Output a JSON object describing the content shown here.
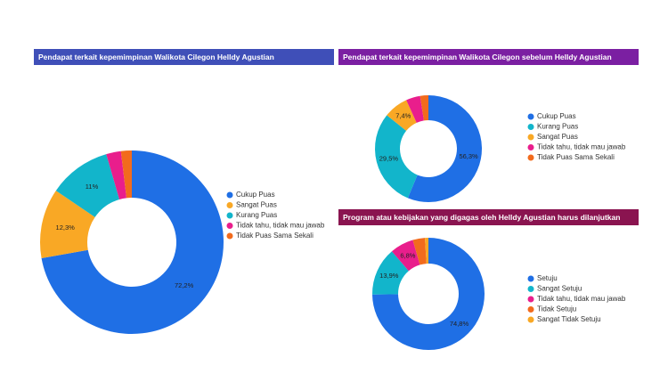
{
  "chart_data": [
    {
      "type": "pie",
      "title": "Pendapat terkait kepemimpinan Walikota Cilegon Helldy Agustian",
      "categories": [
        "Cukup Puas",
        "Sangat Puas",
        "Kurang Puas",
        "Tidak tahu, tidak mau jawab",
        "Tidak Puas Sama Sekali"
      ],
      "values": [
        72.2,
        12.3,
        11,
        2.6,
        1.9
      ],
      "value_labels": [
        "72,2%",
        "12,3%",
        "11%",
        null,
        null
      ],
      "colors": [
        "#1f6fe5",
        "#f9a825",
        "#12b5cb",
        "#e91e8c",
        "#f26b1d"
      ]
    },
    {
      "type": "pie",
      "title": "Pendapat terkait kepemimpinan Walikota Cilegon sebelum Helldy Agustian",
      "categories": [
        "Cukup Puas",
        "Kurang Puas",
        "Sangat Puas",
        "Tidak tahu, tidak mau jawab",
        "Tidak Puas Sama Sekali"
      ],
      "values": [
        56.3,
        29.5,
        7.4,
        4.3,
        2.5
      ],
      "value_labels": [
        "56,3%",
        "29,5%",
        "7,4%",
        null,
        null
      ],
      "colors": [
        "#1f6fe5",
        "#12b5cb",
        "#f9a825",
        "#e91e8c",
        "#f26b1d"
      ]
    },
    {
      "type": "pie",
      "title": "Program atau kebijakan yang digagas oleh Helldy Agustian harus dilanjutkan",
      "categories": [
        "Setuju",
        "Sangat Setuju",
        "Tidak tahu, tidak mau jawab",
        "Tidak Setuju",
        "Sangat Tidak Setuju"
      ],
      "values": [
        74.8,
        13.9,
        6.8,
        3.5,
        1.0
      ],
      "value_labels": [
        "74,8%",
        "13,9%",
        "6,8%",
        null,
        null
      ],
      "colors": [
        "#1f6fe5",
        "#12b5cb",
        "#e91e8c",
        "#f26b1d",
        "#f9a825"
      ]
    }
  ]
}
